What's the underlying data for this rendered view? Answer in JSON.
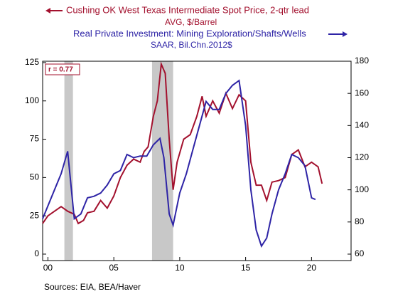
{
  "chart_data": {
    "type": "line",
    "annotation": "r = 0.77",
    "source": "Sources:  EIA, BEA/Haver",
    "xlim": [
      1999.6,
      2023
    ],
    "xticks": [
      {
        "value": 2000,
        "label": "00"
      },
      {
        "value": 2005,
        "label": "05"
      },
      {
        "value": 2010,
        "label": "10"
      },
      {
        "value": 2015,
        "label": "15"
      },
      {
        "value": 2020,
        "label": "20"
      }
    ],
    "ylim": [
      -4.2,
      125.9
    ],
    "yticks": [
      0,
      25,
      50,
      75,
      100,
      125
    ],
    "y2lim": [
      56,
      180
    ],
    "y2ticks": [
      60,
      80,
      100,
      120,
      140,
      160,
      180
    ],
    "recessions": [
      [
        2001.25,
        2001.9
      ],
      [
        2007.9,
        2009.5
      ]
    ],
    "series": [
      {
        "name": "Cushing OK West Texas Intermediate Spot Price, 2-qtr lead",
        "units": "AVG, $/Barrel",
        "color": "#a3112e",
        "axis": "y",
        "x": [
          1999.6,
          2000,
          2000.5,
          2001,
          2001.5,
          2002,
          2002.3,
          2002.7,
          2003,
          2003.5,
          2004,
          2004.5,
          2005,
          2005.5,
          2006,
          2006.5,
          2007,
          2007.3,
          2007.6,
          2008,
          2008.3,
          2008.6,
          2008.9,
          2009.2,
          2009.5,
          2009.8,
          2010.3,
          2010.8,
          2011.3,
          2011.7,
          2012,
          2012.5,
          2013,
          2013.5,
          2014,
          2014.5,
          2015,
          2015.4,
          2015.8,
          2016.2,
          2016.6,
          2017,
          2017.5,
          2018,
          2018.5,
          2019,
          2019.5,
          2020,
          2020.5,
          2020.8
        ],
        "values": [
          20,
          25,
          28,
          31,
          28,
          26,
          20,
          22,
          27,
          28,
          35,
          30,
          38,
          50,
          58,
          62,
          60,
          67,
          70,
          90,
          100,
          124,
          118,
          75,
          42,
          60,
          75,
          78,
          90,
          103,
          90,
          100,
          92,
          105,
          95,
          104,
          100,
          60,
          45,
          45,
          35,
          47,
          48,
          50,
          65,
          68,
          57,
          60,
          57,
          46
        ]
      },
      {
        "name": "Real Private Investment: Mining Exploration/Shafts/Wells",
        "units": "SAAR, Bil.Chn.2012$",
        "color": "#2e24a6",
        "axis": "y2",
        "x": [
          1999.6,
          2000,
          2000.5,
          2001,
          2001.5,
          2002,
          2002.5,
          2003,
          2003.5,
          2004,
          2004.5,
          2005,
          2005.5,
          2006,
          2006.5,
          2007,
          2007.5,
          2008,
          2008.5,
          2008.8,
          2009.2,
          2009.5,
          2010,
          2010.5,
          2011,
          2011.5,
          2012,
          2012.5,
          2013,
          2013.5,
          2014,
          2014.5,
          2015,
          2015.4,
          2015.8,
          2016.2,
          2016.6,
          2017,
          2017.5,
          2018,
          2018.5,
          2019,
          2019.5,
          2020,
          2020.3
        ],
        "values": [
          82,
          90,
          100,
          110,
          124,
          82,
          85,
          95,
          96,
          98,
          103,
          110,
          112,
          122,
          120,
          121,
          121,
          128,
          132,
          120,
          85,
          78,
          98,
          110,
          125,
          140,
          155,
          150,
          150,
          160,
          165,
          168,
          140,
          100,
          75,
          65,
          70,
          85,
          100,
          110,
          122,
          120,
          115,
          95,
          94
        ]
      }
    ]
  }
}
